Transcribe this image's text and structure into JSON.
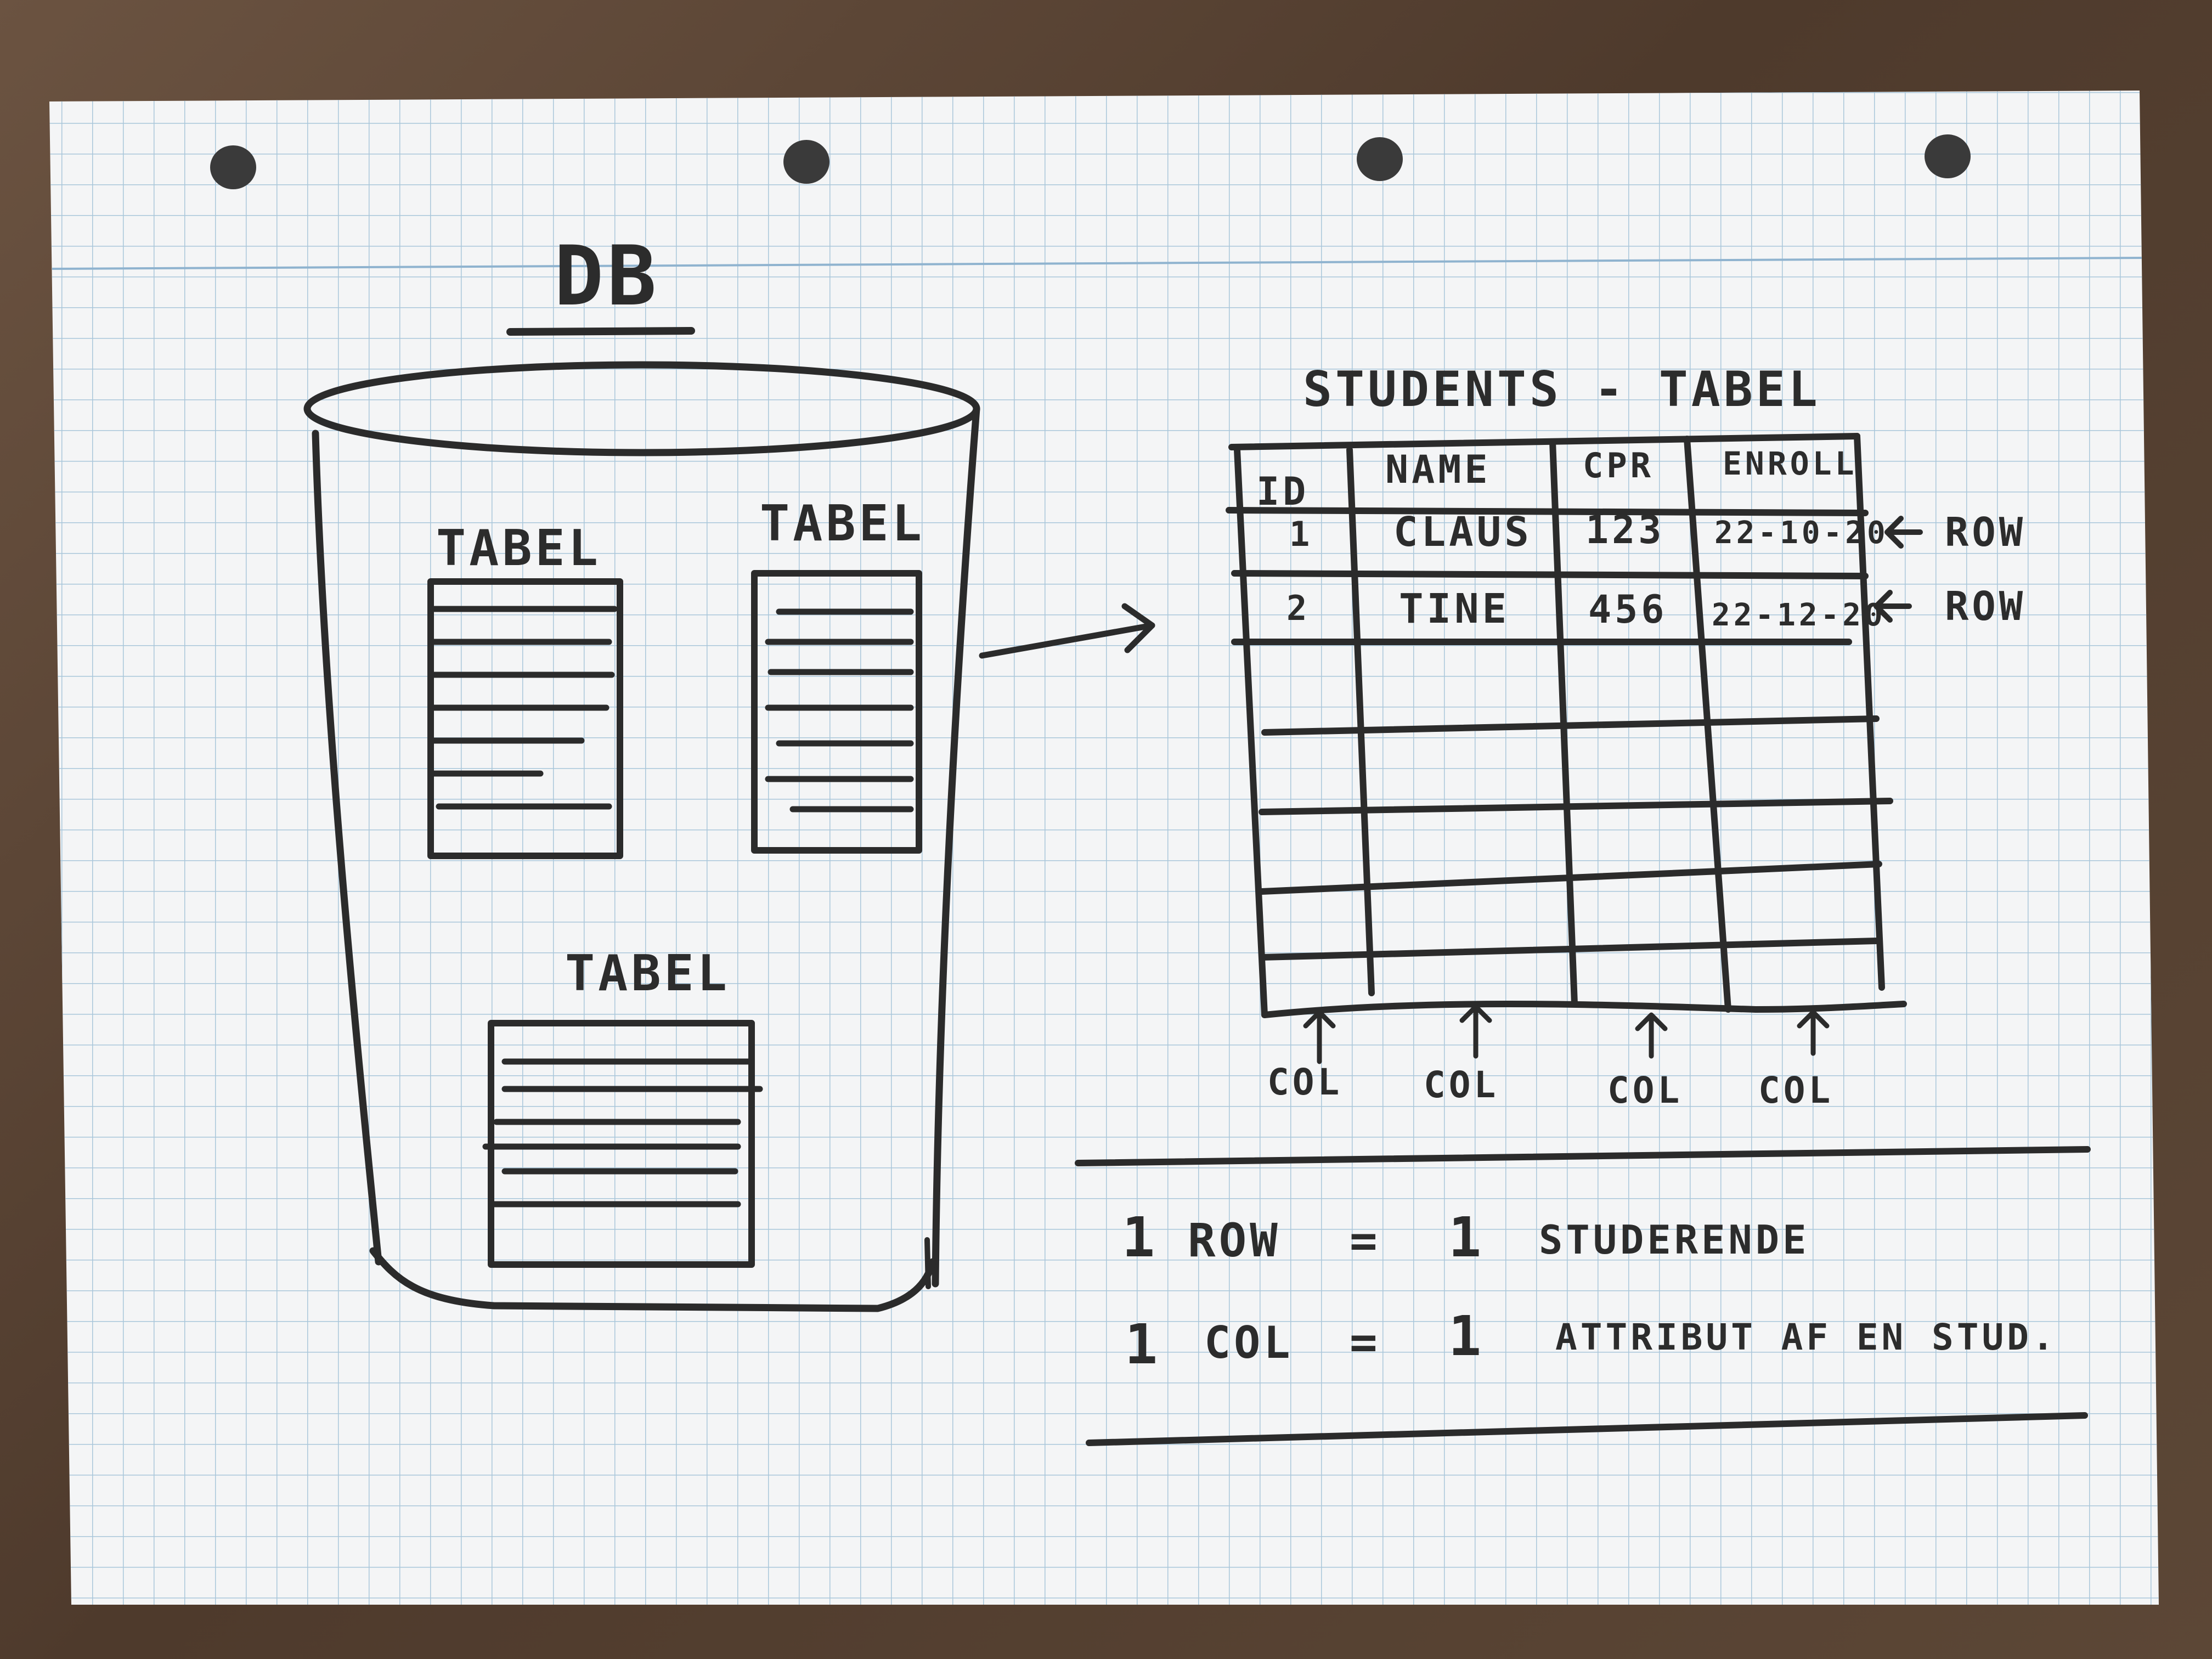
{
  "db_label": "DB",
  "db_tables": [
    {
      "label": "TABEL"
    },
    {
      "label": "TABEL"
    },
    {
      "label": "TABEL"
    }
  ],
  "students_table": {
    "title": "STUDENTS - TABEL",
    "columns": [
      "ID",
      "NAME",
      "CPR",
      "ENROLL"
    ],
    "rows": [
      [
        "1",
        "CLAUS",
        "123",
        "22-10-20"
      ],
      [
        "2",
        "TINE",
        "456",
        "22-12-20"
      ]
    ],
    "row_marker": "ROW",
    "col_marker": "COL"
  },
  "notes": [
    {
      "count": "1",
      "term": "ROW",
      "eq": "=",
      "count2": "1",
      "desc": "STUDERENDE"
    },
    {
      "count": "1",
      "term": "COL",
      "eq": "=",
      "count2": "1",
      "desc": "ATTRIBUT AF EN STUD."
    }
  ],
  "colors": {
    "paper": "#f4f5f6",
    "grid": "#a9c6da",
    "ink": "#2b2b2b",
    "table_bg": "#5a4636"
  }
}
